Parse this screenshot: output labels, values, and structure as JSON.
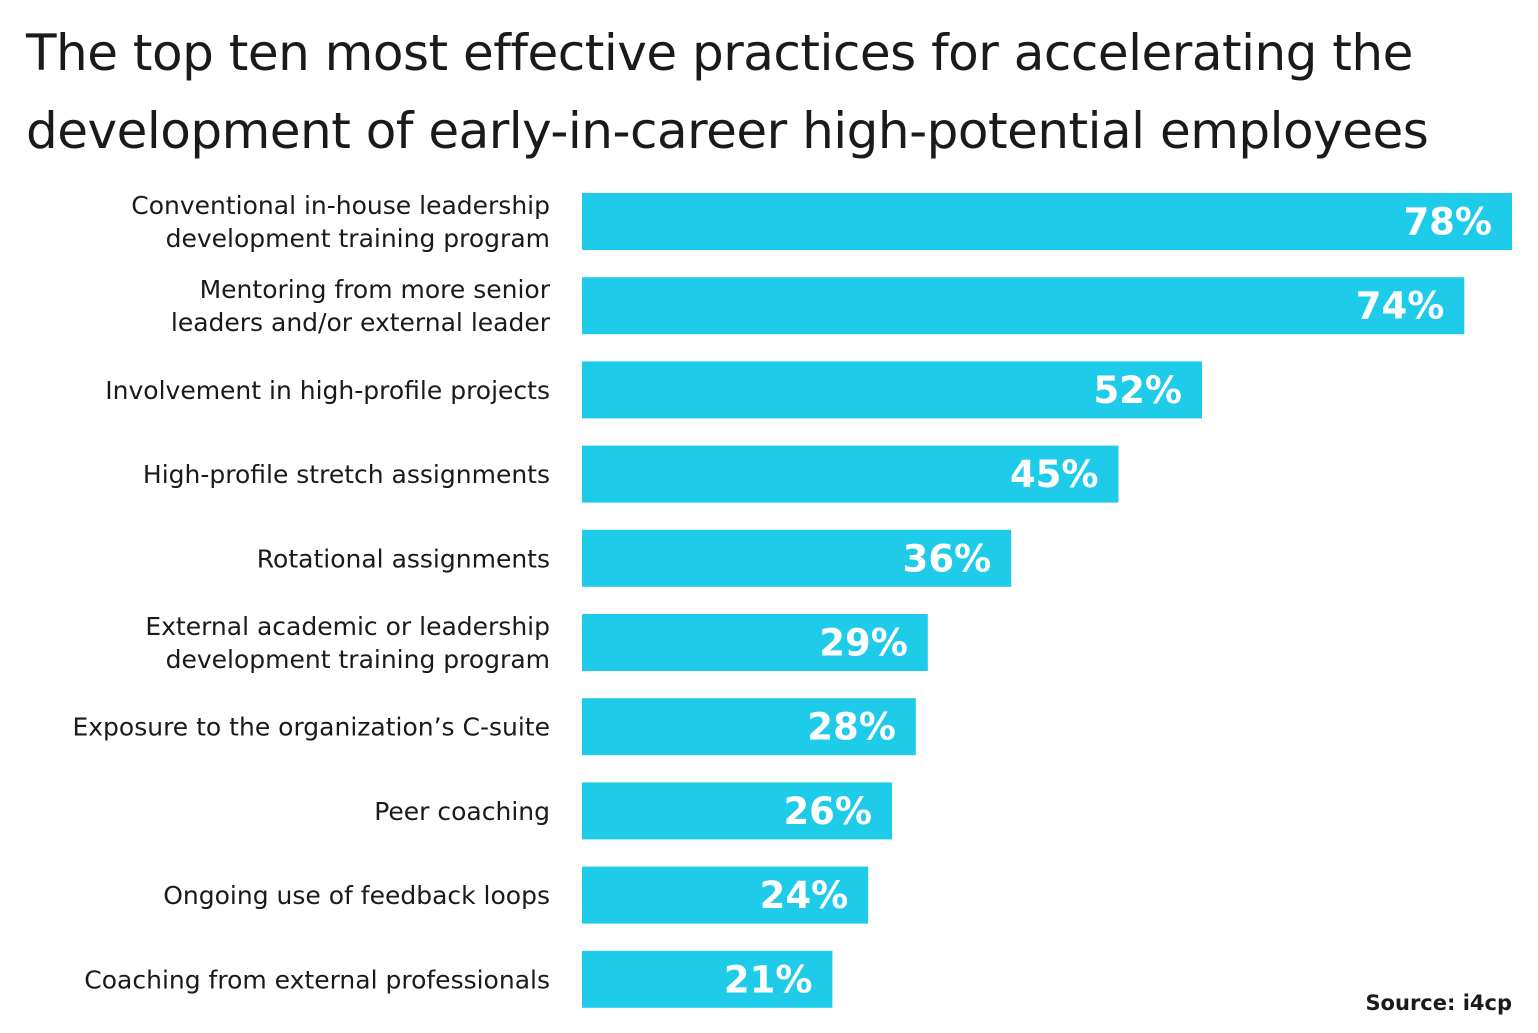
{
  "chart_data": {
    "type": "bar",
    "orientation": "horizontal",
    "title": "The top ten most effective practices for accelerating the development of early-in-career high-potential employees",
    "categories": [
      [
        "Conventional in-house leadership",
        "development training program"
      ],
      [
        "Mentoring from more senior",
        "leaders and/or external leader"
      ],
      [
        "Involvement in high-profile projects"
      ],
      [
        "High-profile stretch assignments"
      ],
      [
        "Rotational assignments"
      ],
      [
        "External academic or leadership",
        "development training program"
      ],
      [
        "Exposure to the organization’s C-suite"
      ],
      [
        "Peer coaching"
      ],
      [
        "Ongoing use of feedback loops"
      ],
      [
        "Coaching from external professionals"
      ]
    ],
    "values": [
      78,
      74,
      52,
      45,
      36,
      29,
      28,
      26,
      24,
      21
    ],
    "value_labels": [
      "78%",
      "74%",
      "52%",
      "45%",
      "36%",
      "29%",
      "28%",
      "26%",
      "24%",
      "21%"
    ],
    "unit": "%",
    "xlim": [
      0,
      78
    ],
    "grid": false,
    "axes_visible": false,
    "bar_color": "#1ecbe9",
    "value_label_color": "#ffffff",
    "source": "Source: i4cp"
  }
}
